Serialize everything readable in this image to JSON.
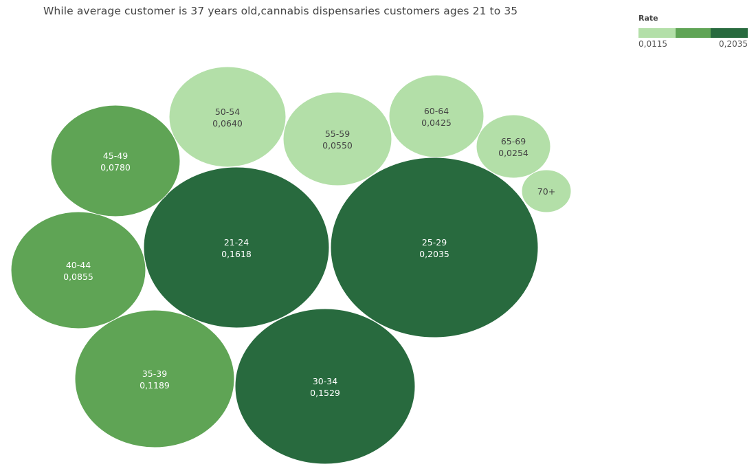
{
  "chart_data": {
    "type": "bubble",
    "title": "While average customer is 37 years old,cannabis dispensaries customers ages 21 to 35",
    "legend": {
      "title": "Rate",
      "min_label": "0,0115",
      "max_label": "0,2035",
      "placement": "top-right",
      "colors": [
        "#b3dfa8",
        "#5fa455",
        "#286a3e"
      ]
    },
    "colors": {
      "low": "#b3dfa8",
      "mid": "#5fa455",
      "high": "#286a3e",
      "dark_text": "#444444",
      "light_text": "#ffffff"
    },
    "bubbles": [
      {
        "category": "21-24",
        "value": 0.1618,
        "value_label": "0,1618"
      },
      {
        "category": "25-29",
        "value": 0.2035,
        "value_label": "0,2035"
      },
      {
        "category": "30-34",
        "value": 0.1529,
        "value_label": "0,1529"
      },
      {
        "category": "35-39",
        "value": 0.1189,
        "value_label": "0,1189"
      },
      {
        "category": "40-44",
        "value": 0.0855,
        "value_label": "0,0855"
      },
      {
        "category": "45-49",
        "value": 0.078,
        "value_label": "0,0780"
      },
      {
        "category": "50-54",
        "value": 0.064,
        "value_label": "0,0640"
      },
      {
        "category": "55-59",
        "value": 0.055,
        "value_label": "0,0550"
      },
      {
        "category": "60-64",
        "value": 0.0425,
        "value_label": "0,0425"
      },
      {
        "category": "65-69",
        "value": 0.0254,
        "value_label": "0,0254"
      },
      {
        "category": "70+",
        "value": 0.0115,
        "value_label": ""
      }
    ]
  }
}
